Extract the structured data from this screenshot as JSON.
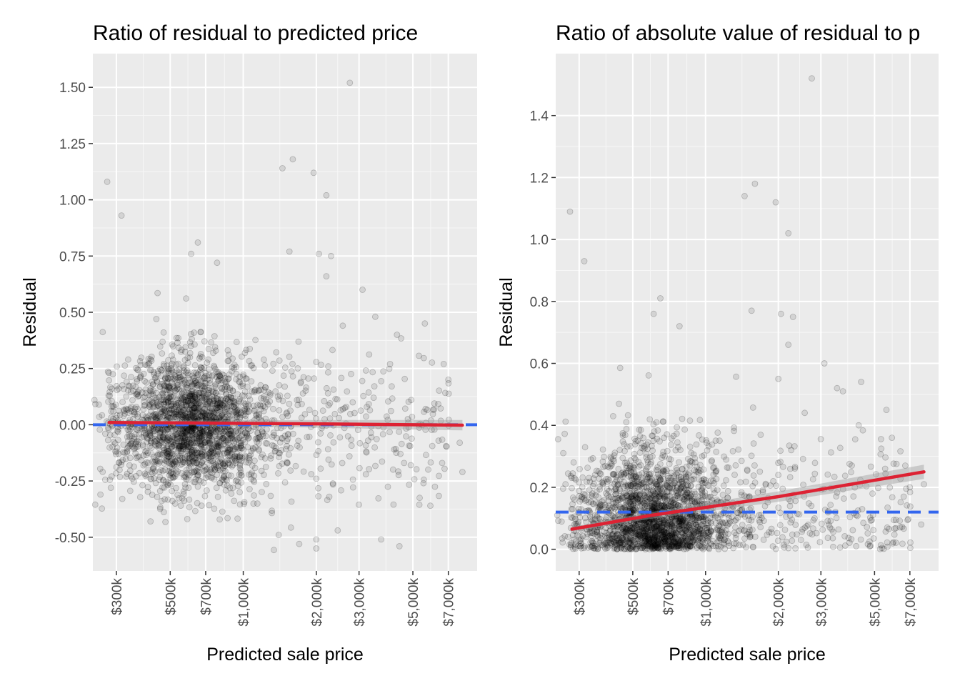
{
  "chart_data": [
    {
      "type": "scatter",
      "title": "Ratio of residual to predicted price",
      "xlabel": "Predicted sale price",
      "ylabel": "Residual",
      "x_scale": "log",
      "xlim": [
        240000,
        9200000
      ],
      "ylim": [
        -0.65,
        1.65
      ],
      "x_ticks": [
        {
          "value": 300000,
          "label": "$300k"
        },
        {
          "value": 500000,
          "label": "$500k"
        },
        {
          "value": 700000,
          "label": "$700k"
        },
        {
          "value": 1000000,
          "label": "$1,000k"
        },
        {
          "value": 2000000,
          "label": "$2,000k"
        },
        {
          "value": 3000000,
          "label": "$3,000k"
        },
        {
          "value": 5000000,
          "label": "$5,000k"
        },
        {
          "value": 7000000,
          "label": "$7,000k"
        }
      ],
      "y_ticks": [
        {
          "value": 1.5,
          "label": "1.50"
        },
        {
          "value": 1.25,
          "label": "1.25"
        },
        {
          "value": 1.0,
          "label": "1.00"
        },
        {
          "value": 0.75,
          "label": "0.75"
        },
        {
          "value": 0.5,
          "label": "0.50"
        },
        {
          "value": 0.25,
          "label": "0.25"
        },
        {
          "value": 0.0,
          "label": "0.00"
        },
        {
          "value": -0.25,
          "label": "-0.25"
        },
        {
          "value": -0.5,
          "label": "-0.50"
        }
      ],
      "reference_line": {
        "y": 0.0,
        "color": "#3366ee",
        "style": "dashed"
      },
      "trend_line": {
        "color": "#dd2233",
        "x": [
          280000,
          600000,
          1000000,
          2000000,
          4000000,
          8000000
        ],
        "y": [
          0.01,
          0.008,
          0.006,
          0.004,
          0.001,
          -0.002
        ],
        "band": 0.02
      },
      "highlight_points": [
        {
          "x": 275000,
          "y": 1.08
        },
        {
          "x": 315000,
          "y": 0.93
        },
        {
          "x": 2750000,
          "y": 1.52
        },
        {
          "x": 1450000,
          "y": 1.14
        },
        {
          "x": 1600000,
          "y": 1.18
        },
        {
          "x": 1950000,
          "y": 1.12
        },
        {
          "x": 2200000,
          "y": 1.02
        },
        {
          "x": 2050000,
          "y": 0.76
        },
        {
          "x": 2300000,
          "y": 0.75
        },
        {
          "x": 2200000,
          "y": 0.66
        },
        {
          "x": 650000,
          "y": 0.81
        },
        {
          "x": 610000,
          "y": 0.76
        },
        {
          "x": 780000,
          "y": 0.72
        },
        {
          "x": 1550000,
          "y": 0.77
        },
        {
          "x": 3100000,
          "y": 0.6
        },
        {
          "x": 3500000,
          "y": 0.48
        },
        {
          "x": 4300000,
          "y": 0.4
        },
        {
          "x": 5600000,
          "y": 0.45
        },
        {
          "x": 6700000,
          "y": 0.27
        },
        {
          "x": 7000000,
          "y": 0.2
        },
        {
          "x": 7800000,
          "y": -0.08
        },
        {
          "x": 8000000,
          "y": -0.21
        },
        {
          "x": 5900000,
          "y": -0.36
        },
        {
          "x": 4400000,
          "y": -0.54
        },
        {
          "x": 3700000,
          "y": -0.51
        },
        {
          "x": 2000000,
          "y": -0.55
        },
        {
          "x": 1700000,
          "y": -0.53
        },
        {
          "x": 2000000,
          "y": -0.51
        },
        {
          "x": 1400000,
          "y": -0.49
        },
        {
          "x": 2450000,
          "y": -0.47
        },
        {
          "x": 3200000,
          "y": -0.22
        },
        {
          "x": 4600000,
          "y": -0.17
        },
        {
          "x": 6600000,
          "y": -0.17
        },
        {
          "x": 270000,
          "y": -0.04
        },
        {
          "x": 300000,
          "y": 0.03
        }
      ],
      "generated_points": {
        "count": 2400,
        "seed": 7,
        "center_log10": 5.79,
        "spread_log10": 0.16,
        "y_sd": 0.15
      }
    },
    {
      "type": "scatter",
      "title": "Ratio of absolute value of residual to p",
      "xlabel": "Predicted sale price",
      "ylabel": "Residual",
      "x_scale": "log",
      "xlim": [
        240000,
        9200000
      ],
      "ylim": [
        -0.07,
        1.6
      ],
      "x_ticks": [
        {
          "value": 300000,
          "label": "$300k"
        },
        {
          "value": 500000,
          "label": "$500k"
        },
        {
          "value": 700000,
          "label": "$700k"
        },
        {
          "value": 1000000,
          "label": "$1,000k"
        },
        {
          "value": 2000000,
          "label": "$2,000k"
        },
        {
          "value": 3000000,
          "label": "$3,000k"
        },
        {
          "value": 5000000,
          "label": "$5,000k"
        },
        {
          "value": 7000000,
          "label": "$7,000k"
        }
      ],
      "y_ticks": [
        {
          "value": 1.4,
          "label": "1.4"
        },
        {
          "value": 1.2,
          "label": "1.2"
        },
        {
          "value": 1.0,
          "label": "1.0"
        },
        {
          "value": 0.8,
          "label": "0.8"
        },
        {
          "value": 0.6,
          "label": "0.6"
        },
        {
          "value": 0.4,
          "label": "0.4"
        },
        {
          "value": 0.2,
          "label": "0.2"
        },
        {
          "value": 0.0,
          "label": "0.0"
        }
      ],
      "reference_line": {
        "y": 0.12,
        "color": "#3366ee",
        "style": "dashed"
      },
      "trend_line": {
        "color": "#dd2233",
        "x": [
          280000,
          600000,
          1000000,
          2000000,
          4000000,
          8000000
        ],
        "y": [
          0.065,
          0.11,
          0.135,
          0.17,
          0.21,
          0.25
        ],
        "band": 0.02
      },
      "highlight_points": [
        {
          "x": 275000,
          "y": 1.09
        },
        {
          "x": 315000,
          "y": 0.93
        },
        {
          "x": 2750000,
          "y": 1.52
        },
        {
          "x": 1450000,
          "y": 1.14
        },
        {
          "x": 1600000,
          "y": 1.18
        },
        {
          "x": 1950000,
          "y": 1.12
        },
        {
          "x": 2200000,
          "y": 1.02
        },
        {
          "x": 2050000,
          "y": 0.76
        },
        {
          "x": 2300000,
          "y": 0.75
        },
        {
          "x": 2200000,
          "y": 0.66
        },
        {
          "x": 650000,
          "y": 0.81
        },
        {
          "x": 610000,
          "y": 0.76
        },
        {
          "x": 780000,
          "y": 0.72
        },
        {
          "x": 1550000,
          "y": 0.77
        },
        {
          "x": 3100000,
          "y": 0.6
        },
        {
          "x": 3500000,
          "y": 0.52
        },
        {
          "x": 4300000,
          "y": 0.4
        },
        {
          "x": 5600000,
          "y": 0.45
        },
        {
          "x": 5900000,
          "y": 0.36
        },
        {
          "x": 4400000,
          "y": 0.54
        },
        {
          "x": 3700000,
          "y": 0.51
        },
        {
          "x": 2000000,
          "y": 0.55
        },
        {
          "x": 6700000,
          "y": 0.27
        },
        {
          "x": 7000000,
          "y": 0.2
        },
        {
          "x": 8000000,
          "y": 0.21
        },
        {
          "x": 7800000,
          "y": 0.08
        },
        {
          "x": 6600000,
          "y": 0.17
        },
        {
          "x": 270000,
          "y": 0.04
        },
        {
          "x": 4200000,
          "y": 0.01
        }
      ],
      "generated_points": {
        "count": 2400,
        "seed": 7,
        "center_log10": 5.79,
        "spread_log10": 0.16,
        "y_sd": 0.15
      }
    }
  ]
}
